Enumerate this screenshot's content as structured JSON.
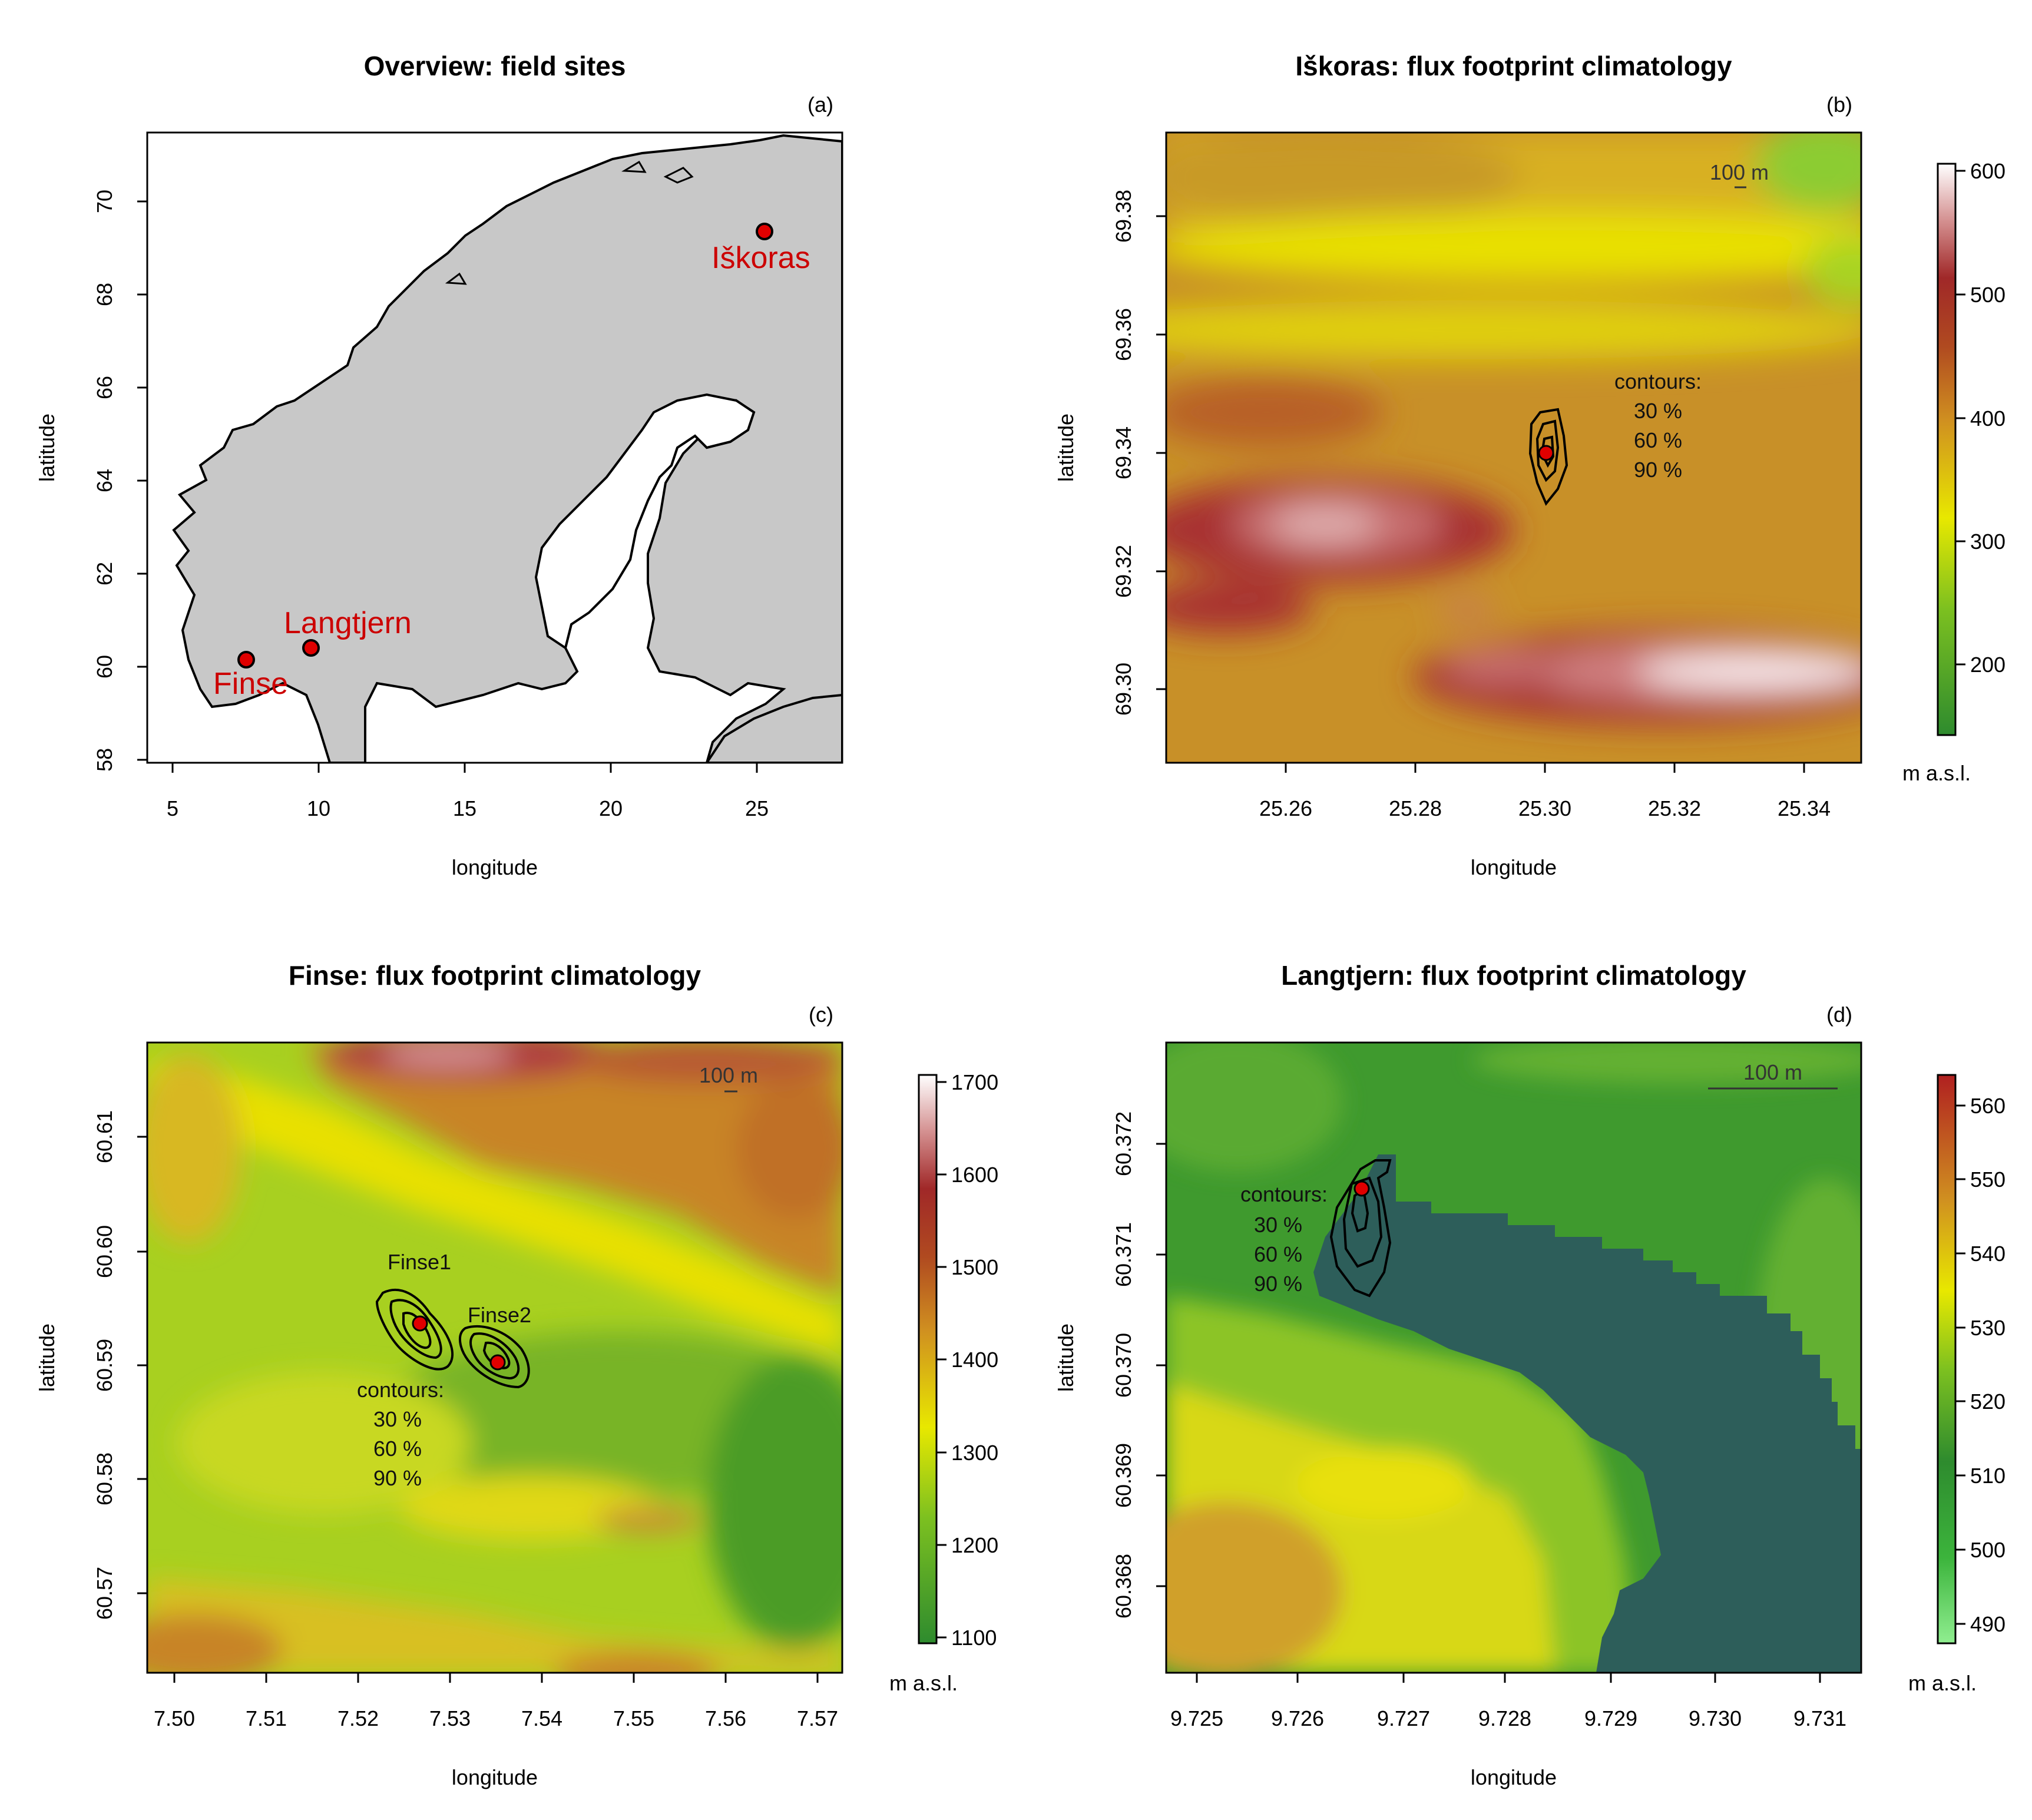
{
  "panels": {
    "a": {
      "title": "Overview: field sites",
      "tag": "(a)",
      "xlabel": "longitude",
      "ylabel": "latitude",
      "x_ticks": [
        "5",
        "10",
        "15",
        "20",
        "25"
      ],
      "y_ticks": [
        "58",
        "60",
        "62",
        "64",
        "66",
        "68",
        "70"
      ],
      "sites": [
        {
          "name": "Finse",
          "lon": 7.53,
          "lat": 60.59
        },
        {
          "name": "Langtjern",
          "lon": 9.73,
          "lat": 60.37
        },
        {
          "name": "Iškoras",
          "lon": 25.3,
          "lat": 69.34
        }
      ]
    },
    "b": {
      "title": "Iškoras: flux footprint climatology",
      "tag": "(b)",
      "xlabel": "longitude",
      "ylabel": "latitude",
      "x_ticks": [
        "25.26",
        "25.28",
        "25.30",
        "25.32",
        "25.34"
      ],
      "y_ticks": [
        "69.30",
        "69.32",
        "69.34",
        "69.36",
        "69.38"
      ],
      "scale_bar": "100 m",
      "contours_label": "contours:",
      "contour_levels": [
        "30 %",
        "60 %",
        "90 %"
      ],
      "colorbar_ticks": [
        "200",
        "300",
        "400",
        "500",
        "600"
      ],
      "unit": "m a.s.l."
    },
    "c": {
      "title": "Finse: flux footprint climatology",
      "tag": "(c)",
      "xlabel": "longitude",
      "ylabel": "latitude",
      "x_ticks": [
        "7.50",
        "7.51",
        "7.52",
        "7.53",
        "7.54",
        "7.55",
        "7.56",
        "7.57"
      ],
      "y_ticks": [
        "60.57",
        "60.58",
        "60.59",
        "60.60",
        "60.61"
      ],
      "scale_bar": "100 m",
      "site_labels": [
        "Finse1",
        "Finse2"
      ],
      "contours_label": "contours:",
      "contour_levels": [
        "30 %",
        "60 %",
        "90 %"
      ],
      "colorbar_ticks": [
        "1100",
        "1200",
        "1300",
        "1400",
        "1500",
        "1600",
        "1700"
      ],
      "unit": "m a.s.l."
    },
    "d": {
      "title": "Langtjern: flux footprint climatology",
      "tag": "(d)",
      "xlabel": "longitude",
      "ylabel": "latitude",
      "x_ticks": [
        "9.725",
        "9.726",
        "9.727",
        "9.728",
        "9.729",
        "9.730",
        "9.731"
      ],
      "y_ticks": [
        "60.368",
        "60.369",
        "60.370",
        "60.371",
        "60.372"
      ],
      "scale_bar": "100 m",
      "contours_label": "contours:",
      "contour_levels": [
        "30 %",
        "60 %",
        "90 %"
      ],
      "colorbar_ticks": [
        "490",
        "500",
        "510",
        "520",
        "530",
        "540",
        "550",
        "560"
      ],
      "unit": "m a.s.l."
    }
  },
  "colors": {
    "land": "#c8c8c8",
    "site_marker": "#e00000",
    "site_label": "#cc0000",
    "lake": "#2d5e5a"
  }
}
